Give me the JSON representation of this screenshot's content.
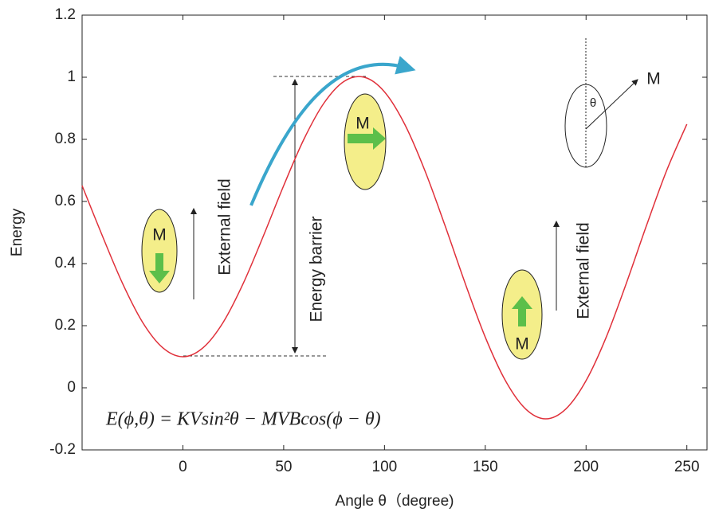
{
  "chart_data": {
    "type": "line",
    "xlabel": "Angle θ（degree)",
    "ylabel": "Energy",
    "x": [
      -50,
      -40,
      -30,
      -20,
      -10,
      0,
      10,
      20,
      30,
      40,
      50,
      60,
      70,
      80,
      90,
      100,
      110,
      120,
      130,
      140,
      150,
      160,
      170,
      180,
      190,
      200,
      210,
      220,
      230,
      240,
      250
    ],
    "series": [
      {
        "color": "#e0303a",
        "values": [
          0.651,
          0.49,
          0.337,
          0.211,
          0.129,
          0.1,
          0.129,
          0.211,
          0.337,
          0.49,
          0.651,
          0.8,
          0.917,
          0.987,
          1.0,
          0.953,
          0.849,
          0.7,
          0.523,
          0.337,
          0.163,
          0.023,
          -0.068,
          -0.1,
          -0.068,
          0.023,
          0.163,
          0.337,
          0.523,
          0.7,
          0.849
        ]
      }
    ],
    "xlim": [
      -50,
      260
    ],
    "xticks": [
      0,
      50,
      100,
      150,
      200,
      250
    ],
    "ylim": [
      -0.2,
      1.2
    ],
    "yticks": [
      -0.2,
      0,
      0.2,
      0.4,
      0.6,
      0.8,
      1,
      1.2
    ],
    "annotations": [
      "External field",
      "Energy barrier",
      "External field",
      "M",
      "M",
      "M",
      "M",
      "θ",
      "E(ϕ,θ) = KVsin²θ − MVBcos(ϕ − θ)"
    ]
  }
}
